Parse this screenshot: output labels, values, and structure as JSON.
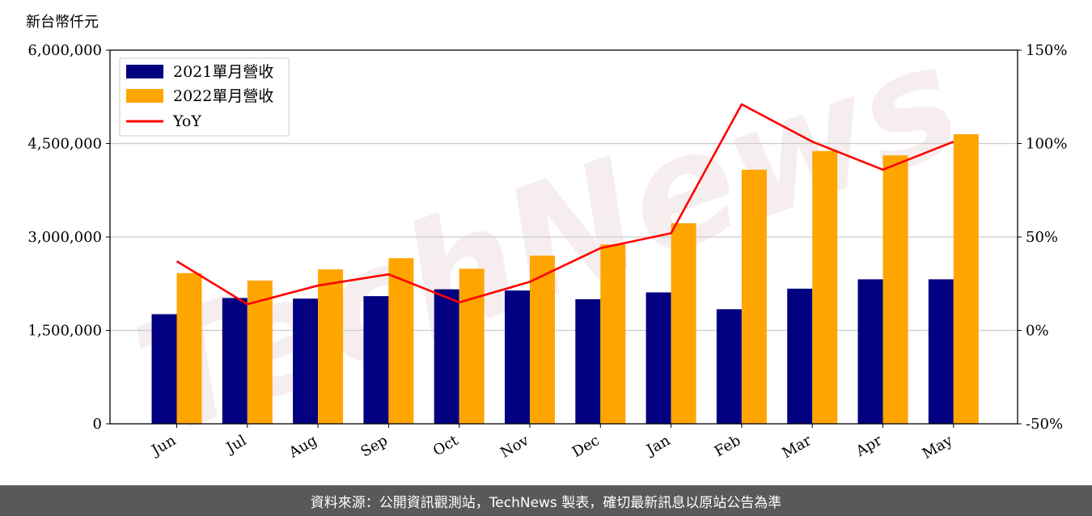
{
  "unit_label": "新台幣仟元",
  "footer_text": "資料來源：公開資訊觀測站，TechNews 製表，確切最新訊息以原站公告為準",
  "watermark_text": "TechNews",
  "colors": {
    "series_2021": "#000080",
    "series_2022": "#ffa500",
    "yoy": "#ff0000",
    "grid": "#cccccc",
    "footer_bg": "#595959"
  },
  "chart_data": {
    "type": "bar",
    "categories": [
      "Jun",
      "Jul",
      "Aug",
      "Sep",
      "Oct",
      "Nov",
      "Dec",
      "Jan",
      "Feb",
      "Mar",
      "Apr",
      "May"
    ],
    "series": [
      {
        "name": "2021單月營收",
        "type": "bar",
        "axis": "left",
        "values": [
          1760000,
          2020000,
          2010000,
          2050000,
          2160000,
          2140000,
          2000000,
          2110000,
          1840000,
          2170000,
          2320000,
          2320000
        ]
      },
      {
        "name": "2022單月營收",
        "type": "bar",
        "axis": "left",
        "values": [
          2420000,
          2300000,
          2480000,
          2660000,
          2490000,
          2700000,
          2880000,
          3220000,
          4080000,
          4380000,
          4310000,
          4650000
        ]
      },
      {
        "name": "YoY",
        "type": "line",
        "axis": "right",
        "values": [
          37,
          14,
          24,
          30,
          15,
          26,
          44,
          52,
          121,
          101,
          86,
          101
        ]
      }
    ],
    "y_left": {
      "min": 0,
      "max": 6000000,
      "ticks": [
        0,
        1500000,
        3000000,
        4500000,
        6000000
      ],
      "tick_labels": [
        "0",
        "1,500,000",
        "3,000,000",
        "4,500,000",
        "6,000,000"
      ]
    },
    "y_right": {
      "min": -50,
      "max": 150,
      "ticks": [
        -50,
        0,
        50,
        100,
        150
      ],
      "tick_labels": [
        "-50%",
        "0%",
        "50%",
        "100%",
        "150%"
      ]
    },
    "grid": "horizontal",
    "legend_position": "top-left"
  }
}
